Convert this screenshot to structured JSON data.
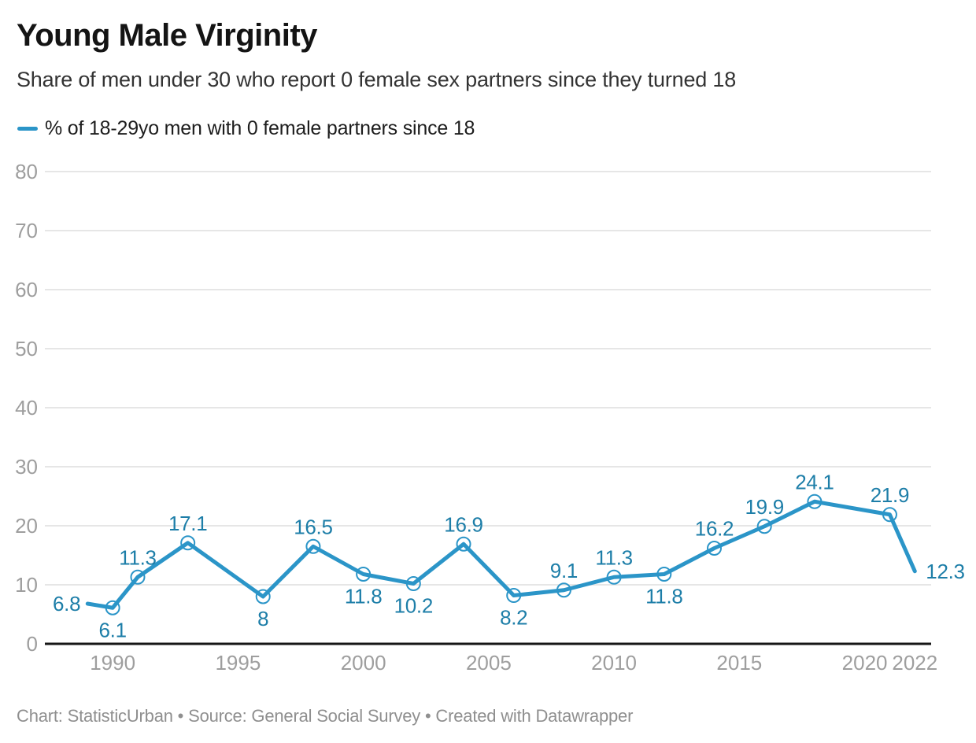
{
  "header": {
    "title": "Young Male Virginity",
    "subtitle": "Share of men under 30 who report 0 female sex partners since they turned 18"
  },
  "legend": {
    "label": "% of 18-29yo men with 0 female partners since 18"
  },
  "footer": {
    "text": "Chart: StatisticUrban • Source: General Social Survey • Created with Datawrapper"
  },
  "colors": {
    "line": "#2b95c8",
    "data_label": "#1d7ea8",
    "grid": "#e6e6e6",
    "axis": "#161616",
    "tick_label": "#9e9e9e"
  },
  "chart_data": {
    "type": "line",
    "title": "Young Male Virginity",
    "subtitle": "Share of men under 30 who report 0 female sex partners since they turned 18",
    "xlabel": "",
    "ylabel": "",
    "grid": true,
    "legend_position": "top-left",
    "xlim": [
      1987.39,
      2022.65
    ],
    "ylim": [
      0,
      80
    ],
    "x_ticks": [
      1990,
      1995,
      2000,
      2005,
      2010,
      2015,
      2020,
      2022
    ],
    "y_ticks": [
      0,
      10,
      20,
      30,
      40,
      50,
      60,
      70,
      80
    ],
    "series": [
      {
        "name": "% of 18-29yo men with 0 female partners since 18",
        "points": [
          {
            "year": 1989,
            "value": 6.8,
            "label": "6.8",
            "label_pos": "left",
            "marker": false
          },
          {
            "year": 1990,
            "value": 6.1,
            "label": "6.1",
            "label_pos": "below",
            "marker": true
          },
          {
            "year": 1991,
            "value": 11.3,
            "label": "11.3",
            "label_pos": "above",
            "marker": true
          },
          {
            "year": 1993,
            "value": 17.1,
            "label": "17.1",
            "label_pos": "above",
            "marker": true
          },
          {
            "year": 1996,
            "value": 8,
            "label": "8",
            "label_pos": "below",
            "marker": true
          },
          {
            "year": 1998,
            "value": 16.5,
            "label": "16.5",
            "label_pos": "above",
            "marker": true
          },
          {
            "year": 2000,
            "value": 11.8,
            "label": "11.8",
            "label_pos": "below",
            "marker": true
          },
          {
            "year": 2002,
            "value": 10.2,
            "label": "10.2",
            "label_pos": "below",
            "marker": true
          },
          {
            "year": 2004,
            "value": 16.9,
            "label": "16.9",
            "label_pos": "above",
            "marker": true
          },
          {
            "year": 2006,
            "value": 8.2,
            "label": "8.2",
            "label_pos": "below",
            "marker": true
          },
          {
            "year": 2008,
            "value": 9.1,
            "label": "9.1",
            "label_pos": "above",
            "marker": true
          },
          {
            "year": 2010,
            "value": 11.3,
            "label": "11.3",
            "label_pos": "above",
            "marker": true
          },
          {
            "year": 2012,
            "value": 11.8,
            "label": "11.8",
            "label_pos": "below",
            "marker": true
          },
          {
            "year": 2014,
            "value": 16.2,
            "label": "16.2",
            "label_pos": "above",
            "marker": true
          },
          {
            "year": 2016,
            "value": 19.9,
            "label": "19.9",
            "label_pos": "above",
            "marker": true
          },
          {
            "year": 2018,
            "value": 24.1,
            "label": "24.1",
            "label_pos": "above",
            "marker": true
          },
          {
            "year": 2021,
            "value": 21.9,
            "label": "21.9",
            "label_pos": "above",
            "marker": true
          },
          {
            "year": 2022,
            "value": 12.3,
            "label": "12.3",
            "label_pos": "right",
            "marker": false
          }
        ]
      }
    ]
  }
}
